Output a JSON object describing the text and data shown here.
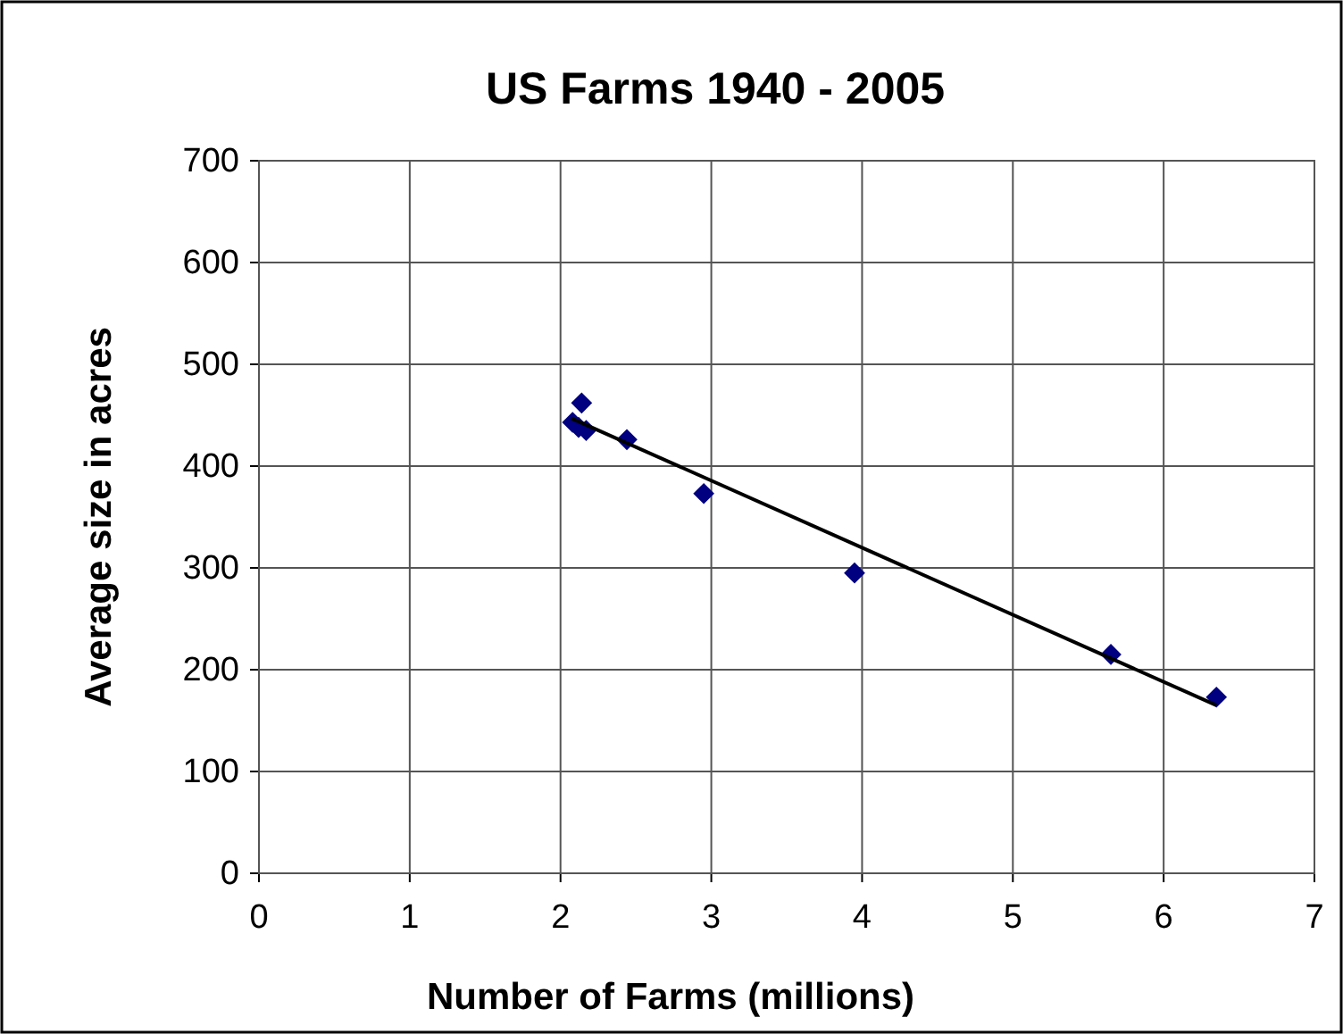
{
  "chart_data": {
    "type": "scatter",
    "title": "US Farms 1940 - 2005",
    "xlabel": "Number of Farms (millions)",
    "ylabel": "Average size in acres",
    "xlim": [
      0,
      7
    ],
    "xticks": [
      0,
      1,
      2,
      3,
      4,
      5,
      6,
      7
    ],
    "ylim": [
      0,
      700
    ],
    "yticks": [
      0,
      100,
      200,
      300,
      400,
      500,
      600,
      700
    ],
    "grid": true,
    "series": [
      {
        "color": "#000080",
        "marker": "diamond",
        "x": [
          2.08,
          2.14,
          2.12,
          2.17,
          2.44,
          2.95,
          3.95,
          5.65,
          6.35
        ],
        "values": [
          443,
          462,
          438,
          435,
          426,
          373,
          295,
          215,
          173
        ]
      },
      {
        "type": "line",
        "marker": "none",
        "color": "#000000",
        "x": [
          2.07,
          6.35
        ],
        "values": [
          447,
          165
        ]
      }
    ]
  }
}
